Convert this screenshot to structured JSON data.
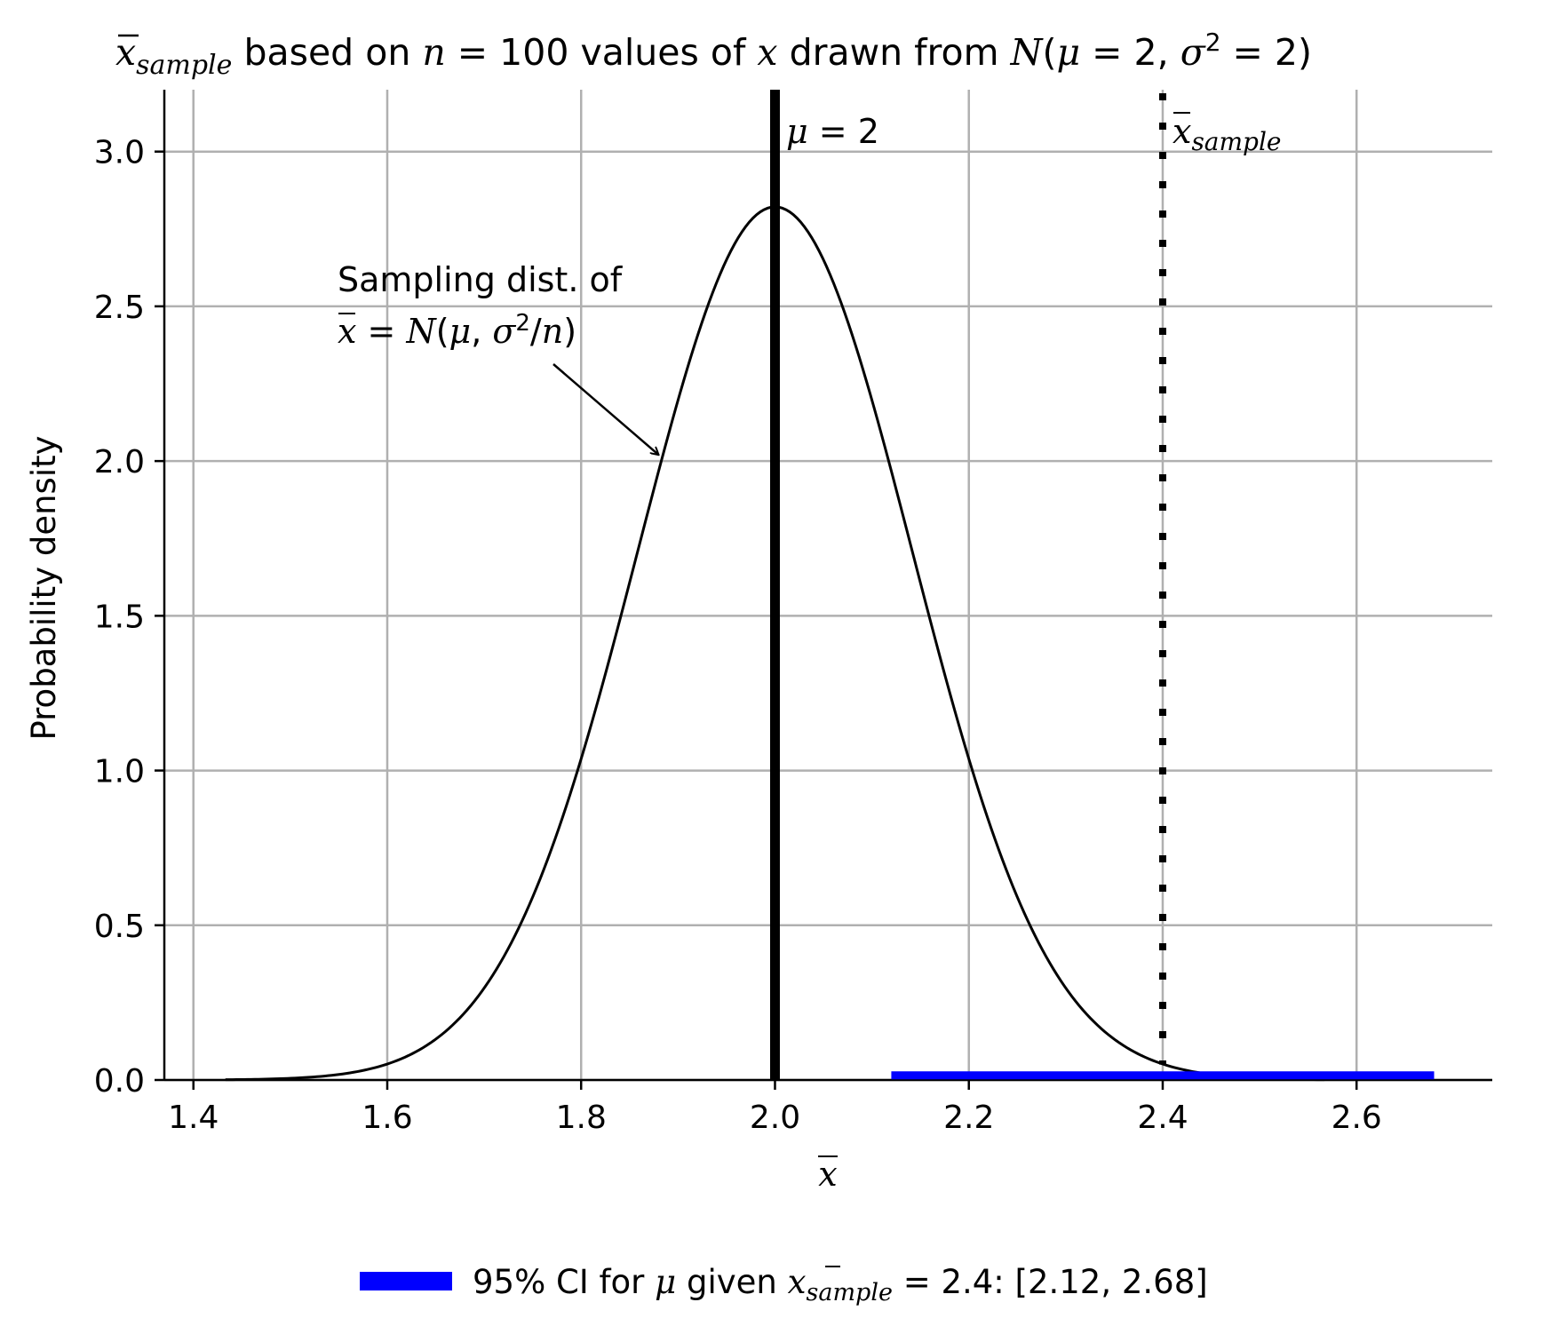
{
  "chart_data": {
    "type": "line",
    "title": {
      "prefix_sym": "x",
      "prefix_sub": "sample",
      "text1": " based on ",
      "n_sym": "n",
      "n_eq": " = 100",
      "text2": " values of ",
      "x_sym": "x",
      "text3": " drawn from ",
      "dist_sym": "N",
      "dist_open": "(",
      "mu_sym": "μ",
      "mu_eq": " = 2, ",
      "sigma_sym": "σ",
      "sigma_exp": "2",
      "sigma_eq": " = 2)"
    },
    "xlabel": "x",
    "ylabel": "Probability density",
    "xlim": [
      1.37,
      2.74
    ],
    "ylim": [
      0.0,
      3.2
    ],
    "x_ticks": [
      1.4,
      1.6,
      1.8,
      2.0,
      2.2,
      2.4,
      2.6
    ],
    "x_tick_labels": [
      "1.4",
      "1.6",
      "1.8",
      "2.0",
      "2.2",
      "2.4",
      "2.6"
    ],
    "y_ticks": [
      0.0,
      0.5,
      1.0,
      1.5,
      2.0,
      2.5,
      3.0
    ],
    "y_tick_labels": [
      "0.0",
      "0.5",
      "1.0",
      "1.5",
      "2.0",
      "2.5",
      "3.0"
    ],
    "grid": true,
    "series": [
      {
        "type": "normal_pdf",
        "mu": 2.0,
        "sigma": 0.1414,
        "x_range": [
          1.433,
          2.567
        ],
        "color": "#000000"
      }
    ],
    "vlines": [
      {
        "x": 2.0,
        "style": "solid",
        "color": "#000000",
        "label_sym": "μ",
        "label_text": " = 2"
      },
      {
        "x": 2.4,
        "style": "dotted",
        "color": "#000000",
        "label_sym": "x",
        "label_sub": "sample"
      }
    ],
    "ci": {
      "low": 2.12,
      "high": 2.68,
      "y": 0.015,
      "color": "#0000ff"
    },
    "annotation": {
      "line1": "Sampling dist. of",
      "line2_sym": "x",
      "line2_eq": " = ",
      "line2_dist": "N",
      "line2_open": "(",
      "line2_mu": "μ",
      "line2_comma": ", ",
      "line2_sigma": "σ",
      "line2_exp": "2",
      "line2_slash": "/",
      "line2_n": "n",
      "line2_close": ")",
      "arrow_to": {
        "x": 1.88,
        "y": 2.02
      }
    },
    "legend": {
      "placement": "bottom-center",
      "entry_text1": "95% CI for ",
      "entry_mu": "μ",
      "entry_text2": " given ",
      "entry_sym": "x",
      "entry_sub": "sample",
      "entry_text3": " = 2.4: [2.12, 2.68]",
      "color": "#0000ff"
    }
  }
}
